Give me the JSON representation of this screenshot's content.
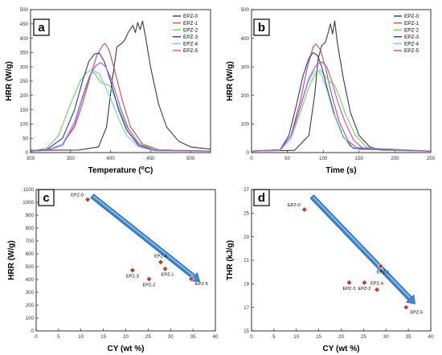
{
  "chart_data": [
    {
      "panel": "a",
      "type": "line",
      "xlabel": "Temperature (",
      "xlabel_sup": "o",
      "xlabel_end": "C)",
      "ylabel": "HRR (W/g)",
      "xlim": [
        300,
        525
      ],
      "ylim": [
        0,
        500
      ],
      "xticks": [
        300,
        350,
        400,
        450,
        500
      ],
      "yticks": [
        0,
        50,
        100,
        150,
        200,
        250,
        300,
        350,
        400,
        450,
        500
      ],
      "legend_position": "top-right",
      "series": [
        {
          "name": "EPZ-0",
          "color": "#3a3a3a",
          "points": [
            [
              300,
              8
            ],
            [
              360,
              9
            ],
            [
              385,
              20
            ],
            [
              395,
              90
            ],
            [
              402,
              250
            ],
            [
              408,
              370
            ],
            [
              414,
              382
            ],
            [
              418,
              395
            ],
            [
              422,
              420
            ],
            [
              428,
              445
            ],
            [
              431,
              420
            ],
            [
              434,
              455
            ],
            [
              437,
              430
            ],
            [
              440,
              460
            ],
            [
              444,
              400
            ],
            [
              450,
              300
            ],
            [
              460,
              170
            ],
            [
              470,
              90
            ],
            [
              485,
              40
            ],
            [
              500,
              20
            ],
            [
              525,
              12
            ]
          ]
        },
        {
          "name": "EPZ-1",
          "color": "#c0504d",
          "points": [
            [
              300,
              5
            ],
            [
              320,
              8
            ],
            [
              340,
              30
            ],
            [
              355,
              90
            ],
            [
              365,
              170
            ],
            [
              375,
              270
            ],
            [
              383,
              340
            ],
            [
              390,
              375
            ],
            [
              393,
              382
            ],
            [
              398,
              360
            ],
            [
              405,
              290
            ],
            [
              415,
              180
            ],
            [
              425,
              90
            ],
            [
              440,
              30
            ],
            [
              460,
              10
            ],
            [
              525,
              5
            ]
          ]
        },
        {
          "name": "EPZ-2",
          "color": "#66dd44",
          "points": [
            [
              300,
              5
            ],
            [
              320,
              15
            ],
            [
              335,
              60
            ],
            [
              350,
              170
            ],
            [
              362,
              250
            ],
            [
              370,
              280
            ],
            [
              376,
              290
            ],
            [
              382,
              270
            ],
            [
              388,
              245
            ],
            [
              395,
              240
            ],
            [
              400,
              230
            ],
            [
              410,
              160
            ],
            [
              420,
              90
            ],
            [
              435,
              35
            ],
            [
              455,
              10
            ],
            [
              525,
              5
            ]
          ]
        },
        {
          "name": "EPZ-3",
          "color": "#3030c8",
          "points": [
            [
              300,
              5
            ],
            [
              320,
              10
            ],
            [
              340,
              50
            ],
            [
              355,
              150
            ],
            [
              365,
              250
            ],
            [
              373,
              320
            ],
            [
              380,
              345
            ],
            [
              386,
              348
            ],
            [
              392,
              320
            ],
            [
              400,
              250
            ],
            [
              410,
              150
            ],
            [
              420,
              80
            ],
            [
              435,
              25
            ],
            [
              455,
              8
            ],
            [
              525,
              5
            ]
          ]
        },
        {
          "name": "EPZ-4",
          "color": "#66ccee",
          "points": [
            [
              300,
              5
            ],
            [
              320,
              8
            ],
            [
              340,
              30
            ],
            [
              355,
              110
            ],
            [
              365,
              200
            ],
            [
              373,
              265
            ],
            [
              380,
              285
            ],
            [
              386,
              275
            ],
            [
              392,
              240
            ],
            [
              400,
              190
            ],
            [
              410,
              120
            ],
            [
              420,
              60
            ],
            [
              435,
              20
            ],
            [
              455,
              6
            ],
            [
              525,
              5
            ]
          ]
        },
        {
          "name": "EPZ-5",
          "color": "#cc44cc",
          "points": [
            [
              300,
              5
            ],
            [
              320,
              8
            ],
            [
              340,
              25
            ],
            [
              355,
              100
            ],
            [
              365,
              190
            ],
            [
              375,
              275
            ],
            [
              382,
              305
            ],
            [
              388,
              315
            ],
            [
              394,
              300
            ],
            [
              402,
              250
            ],
            [
              412,
              160
            ],
            [
              422,
              85
            ],
            [
              435,
              30
            ],
            [
              455,
              8
            ],
            [
              525,
              5
            ]
          ]
        }
      ]
    },
    {
      "panel": "b",
      "type": "line",
      "xlabel": "Time (s)",
      "ylabel": "HRR (W/g)",
      "xlim": [
        0,
        250
      ],
      "ylim": [
        0,
        500
      ],
      "xticks": [
        0,
        50,
        100,
        150,
        200,
        250
      ],
      "yticks": [
        0,
        100,
        200,
        300,
        400,
        500
      ],
      "legend_position": "top-right",
      "series": [
        {
          "name": "EPZ-0",
          "color": "#3a3a3a",
          "points": [
            [
              0,
              5
            ],
            [
              60,
              8
            ],
            [
              80,
              60
            ],
            [
              88,
              200
            ],
            [
              93,
              330
            ],
            [
              98,
              375
            ],
            [
              103,
              385
            ],
            [
              107,
              420
            ],
            [
              110,
              450
            ],
            [
              113,
              415
            ],
            [
              116,
              460
            ],
            [
              120,
              380
            ],
            [
              128,
              260
            ],
            [
              138,
              140
            ],
            [
              150,
              60
            ],
            [
              165,
              20
            ],
            [
              185,
              8
            ],
            [
              250,
              5
            ]
          ]
        },
        {
          "name": "EPZ-1",
          "color": "#c0504d",
          "points": [
            [
              0,
              5
            ],
            [
              40,
              10
            ],
            [
              55,
              60
            ],
            [
              68,
              180
            ],
            [
              78,
              300
            ],
            [
              86,
              370
            ],
            [
              90,
              380
            ],
            [
              96,
              360
            ],
            [
              103,
              300
            ],
            [
              112,
              200
            ],
            [
              122,
              110
            ],
            [
              135,
              40
            ],
            [
              150,
              12
            ],
            [
              250,
              5
            ]
          ]
        },
        {
          "name": "EPZ-2",
          "color": "#66dd44",
          "points": [
            [
              0,
              5
            ],
            [
              40,
              10
            ],
            [
              55,
              50
            ],
            [
              68,
              140
            ],
            [
              80,
              230
            ],
            [
              90,
              280
            ],
            [
              96,
              290
            ],
            [
              102,
              270
            ],
            [
              108,
              250
            ],
            [
              115,
              240
            ],
            [
              122,
              200
            ],
            [
              132,
              130
            ],
            [
              145,
              60
            ],
            [
              160,
              20
            ],
            [
              180,
              8
            ],
            [
              250,
              5
            ]
          ]
        },
        {
          "name": "EPZ-3",
          "color": "#3030c8",
          "points": [
            [
              0,
              5
            ],
            [
              40,
              10
            ],
            [
              52,
              60
            ],
            [
              62,
              160
            ],
            [
              72,
              270
            ],
            [
              80,
              330
            ],
            [
              86,
              350
            ],
            [
              92,
              340
            ],
            [
              98,
              300
            ],
            [
              106,
              220
            ],
            [
              116,
              130
            ],
            [
              128,
              55
            ],
            [
              142,
              15
            ],
            [
              250,
              5
            ]
          ]
        },
        {
          "name": "EPZ-4",
          "color": "#66ccee",
          "points": [
            [
              0,
              5
            ],
            [
              40,
              8
            ],
            [
              55,
              50
            ],
            [
              67,
              150
            ],
            [
              78,
              240
            ],
            [
              86,
              280
            ],
            [
              92,
              288
            ],
            [
              98,
              270
            ],
            [
              105,
              220
            ],
            [
              114,
              140
            ],
            [
              125,
              70
            ],
            [
              138,
              20
            ],
            [
              250,
              5
            ]
          ]
        },
        {
          "name": "EPZ-5",
          "color": "#cc44cc",
          "points": [
            [
              0,
              5
            ],
            [
              40,
              10
            ],
            [
              55,
              60
            ],
            [
              68,
              160
            ],
            [
              80,
              260
            ],
            [
              90,
              305
            ],
            [
              98,
              318
            ],
            [
              105,
              300
            ],
            [
              112,
              250
            ],
            [
              120,
              180
            ],
            [
              130,
              110
            ],
            [
              142,
              45
            ],
            [
              155,
              15
            ],
            [
              250,
              5
            ]
          ]
        }
      ]
    },
    {
      "panel": "c",
      "type": "scatter",
      "xlabel": "CY (wt %)",
      "ylabel": "HRR (W/g)",
      "xlim": [
        0,
        40
      ],
      "ylim": [
        0,
        1100
      ],
      "xticks": [
        0,
        5,
        10,
        15,
        20,
        25,
        30,
        35,
        40
      ],
      "yticks": [
        0,
        100,
        200,
        300,
        400,
        500,
        600,
        700,
        800,
        900,
        1000,
        1100
      ],
      "points": [
        {
          "label": "EPZ-0",
          "x": 11.5,
          "y": 1022
        },
        {
          "label": "EPZ-3",
          "x": 21.5,
          "y": 472
        },
        {
          "label": "EPZ-2",
          "x": 25.2,
          "y": 403
        },
        {
          "label": "EPZ-4",
          "x": 27.8,
          "y": 535
        },
        {
          "label": "EPZ-1",
          "x": 28.8,
          "y": 483
        },
        {
          "label": "EPZ-5",
          "x": 34.6,
          "y": 405
        }
      ],
      "arrow": {
        "from": [
          12.5,
          1050
        ],
        "to": [
          36.5,
          385
        ]
      }
    },
    {
      "panel": "d",
      "type": "scatter",
      "xlabel": "CY (wt %)",
      "ylabel": "THR (kJ/g)",
      "xlim": [
        0,
        40
      ],
      "ylim": [
        15,
        27
      ],
      "xticks": [
        0,
        5,
        10,
        15,
        20,
        25,
        30,
        35,
        40
      ],
      "yticks": [
        15,
        17,
        19,
        21,
        23,
        25,
        27
      ],
      "points": [
        {
          "label": "EPZ-0",
          "x": 11.8,
          "y": 25.3
        },
        {
          "label": "EPZ-3",
          "x": 21.8,
          "y": 19.1
        },
        {
          "label": "EPZ-2",
          "x": 25.2,
          "y": 19.1
        },
        {
          "label": "EPZ-4",
          "x": 28.0,
          "y": 18.5
        },
        {
          "label": "EPZ-1",
          "x": 28.8,
          "y": 20.5
        },
        {
          "label": "EPZ-5",
          "x": 34.5,
          "y": 17.0
        }
      ],
      "arrow": {
        "from": [
          13.5,
          26.4
        ],
        "to": [
          36.5,
          17.3
        ]
      }
    }
  ]
}
